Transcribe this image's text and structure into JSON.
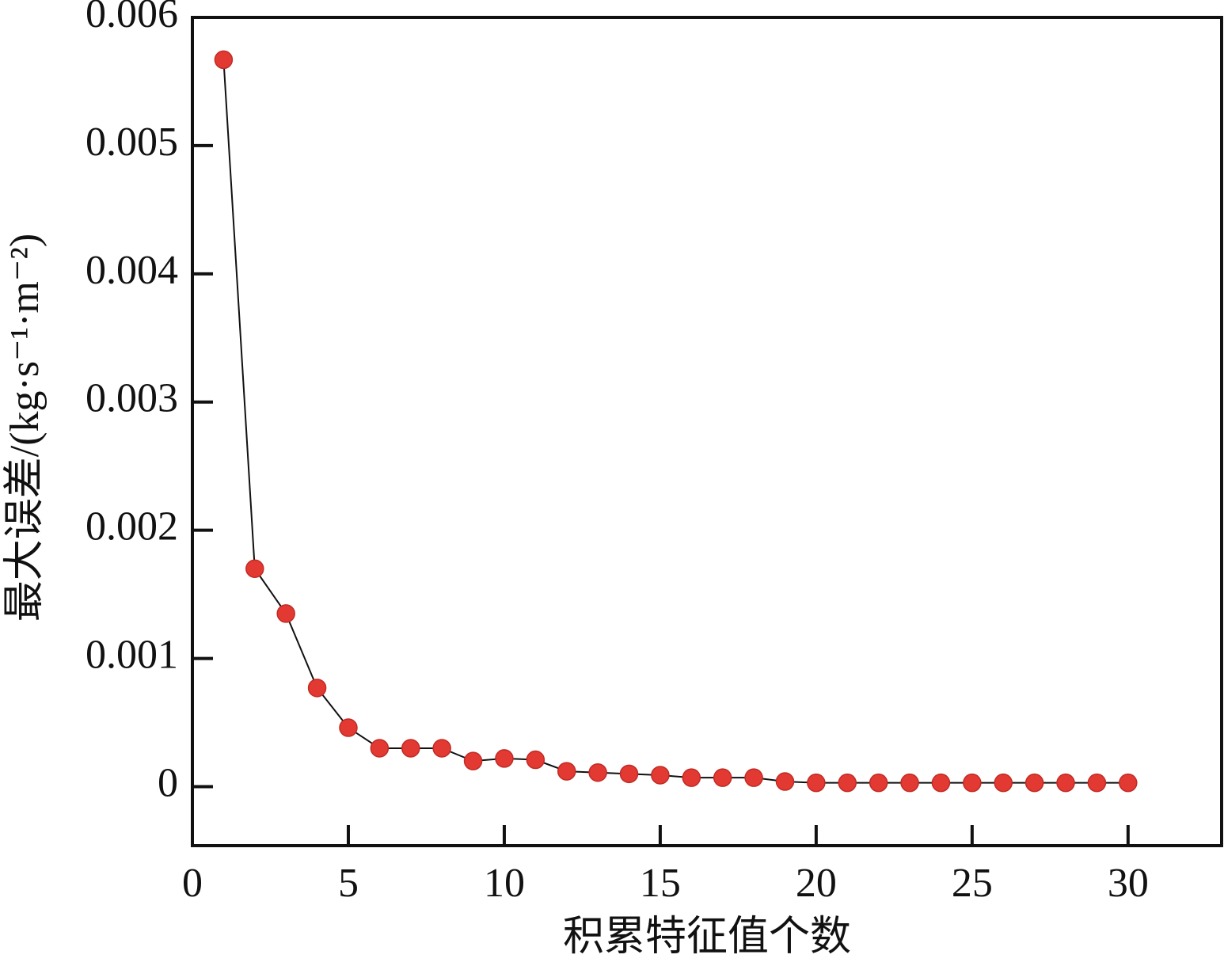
{
  "chart_data": {
    "type": "line",
    "x_label": "积累特征值个数",
    "y_label": "最大误差/(kg·s⁻¹·m⁻²)",
    "x": [
      1,
      2,
      3,
      4,
      5,
      6,
      7,
      8,
      9,
      10,
      11,
      12,
      13,
      14,
      15,
      16,
      17,
      18,
      19,
      20,
      21,
      22,
      23,
      24,
      25,
      26,
      27,
      28,
      29,
      30
    ],
    "series": [
      {
        "color": "#e23a33",
        "line_color": "#111111",
        "values": [
          0.00567,
          0.0017,
          0.00135,
          0.00077,
          0.00046,
          0.0003,
          0.0003,
          0.0003,
          0.0002,
          0.00022,
          0.00021,
          0.00012,
          0.00011,
          0.0001,
          9e-05,
          7e-05,
          7e-05,
          7e-05,
          4e-05,
          3e-05,
          3e-05,
          3e-05,
          3e-05,
          3e-05,
          3e-05,
          3e-05,
          3e-05,
          3e-05,
          3e-05,
          3e-05
        ]
      }
    ],
    "xlim": [
      0,
      33
    ],
    "xticks": [
      0,
      5,
      10,
      15,
      20,
      25,
      30
    ],
    "ylim": [
      -0.00046,
      0.006
    ],
    "yticks": [
      0,
      0.001,
      0.002,
      0.003,
      0.004,
      0.005,
      0.006
    ]
  }
}
